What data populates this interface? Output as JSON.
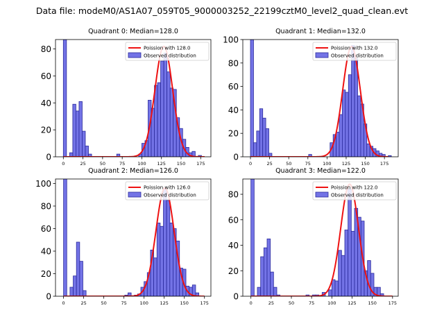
{
  "figure": {
    "suptitle": "Data file: modeM0/AS1A07_059T05_9000003252_22199cztM0_level2_quad_clean.evt"
  },
  "colors": {
    "hist_fill": "#7373e6",
    "hist_edge": "#2a2a9c",
    "curve": "#ee1111",
    "axis": "#000000"
  },
  "chart_data": [
    {
      "type": "bar",
      "title": "Quadrant 0: Median=128.0",
      "xlim": [
        -10,
        188
      ],
      "ylim": [
        0,
        87
      ],
      "xticks": [
        0,
        25,
        50,
        75,
        100,
        125,
        150,
        175
      ],
      "yticks": [
        0,
        20,
        40,
        60,
        80
      ],
      "bin_width": 4,
      "legend": {
        "position": "top-right",
        "curve_label": "Poission with 128.0",
        "hist_label": "Observed distribution"
      },
      "poisson_mean": 128,
      "poisson_peak": 82,
      "curve_range": [
        0,
        180
      ],
      "bins": [
        {
          "x": 0,
          "v": 87
        },
        {
          "x": 8,
          "v": 3
        },
        {
          "x": 12,
          "v": 39
        },
        {
          "x": 16,
          "v": 34
        },
        {
          "x": 20,
          "v": 41
        },
        {
          "x": 24,
          "v": 19
        },
        {
          "x": 28,
          "v": 8
        },
        {
          "x": 32,
          "v": 2
        },
        {
          "x": 68,
          "v": 2
        },
        {
          "x": 96,
          "v": 2
        },
        {
          "x": 100,
          "v": 10
        },
        {
          "x": 104,
          "v": 12
        },
        {
          "x": 108,
          "v": 42
        },
        {
          "x": 112,
          "v": 36
        },
        {
          "x": 116,
          "v": 53
        },
        {
          "x": 120,
          "v": 55
        },
        {
          "x": 124,
          "v": 71
        },
        {
          "x": 128,
          "v": 77
        },
        {
          "x": 132,
          "v": 63
        },
        {
          "x": 136,
          "v": 51
        },
        {
          "x": 140,
          "v": 50
        },
        {
          "x": 144,
          "v": 29
        },
        {
          "x": 148,
          "v": 21
        },
        {
          "x": 152,
          "v": 13
        },
        {
          "x": 156,
          "v": 7
        },
        {
          "x": 160,
          "v": 3
        },
        {
          "x": 164,
          "v": 4
        },
        {
          "x": 172,
          "v": 1
        }
      ]
    },
    {
      "type": "bar",
      "title": "Quadrant 1: Median=132.0",
      "xlim": [
        -10,
        193
      ],
      "ylim": [
        0,
        100
      ],
      "xticks": [
        0,
        25,
        50,
        75,
        100,
        125,
        150,
        175
      ],
      "yticks": [
        0,
        20,
        40,
        60,
        80,
        100
      ],
      "bin_width": 4,
      "legend": {
        "position": "top-right",
        "curve_label": "Poission with 132.0",
        "hist_label": "Observed distribution"
      },
      "poisson_mean": 132,
      "poisson_peak": 94,
      "curve_range": [
        0,
        180
      ],
      "bins": [
        {
          "x": 0,
          "v": 100
        },
        {
          "x": 4,
          "v": 12
        },
        {
          "x": 8,
          "v": 22
        },
        {
          "x": 12,
          "v": 41
        },
        {
          "x": 16,
          "v": 33
        },
        {
          "x": 20,
          "v": 24
        },
        {
          "x": 24,
          "v": 3
        },
        {
          "x": 76,
          "v": 2
        },
        {
          "x": 104,
          "v": 12
        },
        {
          "x": 108,
          "v": 19
        },
        {
          "x": 112,
          "v": 21
        },
        {
          "x": 116,
          "v": 36
        },
        {
          "x": 120,
          "v": 57
        },
        {
          "x": 124,
          "v": 55
        },
        {
          "x": 128,
          "v": 70
        },
        {
          "x": 132,
          "v": 95
        },
        {
          "x": 136,
          "v": 84
        },
        {
          "x": 140,
          "v": 52
        },
        {
          "x": 144,
          "v": 45
        },
        {
          "x": 148,
          "v": 28
        },
        {
          "x": 152,
          "v": 11
        },
        {
          "x": 156,
          "v": 9
        },
        {
          "x": 160,
          "v": 7
        },
        {
          "x": 164,
          "v": 5
        },
        {
          "x": 168,
          "v": 3
        },
        {
          "x": 172,
          "v": 2
        },
        {
          "x": 180,
          "v": 1
        }
      ]
    },
    {
      "type": "bar",
      "title": "Quadrant 2: Median=126.0",
      "xlim": [
        -10,
        183
      ],
      "ylim": [
        0,
        104
      ],
      "xticks": [
        0,
        25,
        50,
        75,
        100,
        125,
        150,
        175
      ],
      "yticks": [
        0,
        20,
        40,
        60,
        80,
        100
      ],
      "bin_width": 4,
      "legend": {
        "position": "top-right",
        "curve_label": "Poission with 126.0",
        "hist_label": "Observed distribution"
      },
      "poisson_mean": 126,
      "poisson_peak": 96,
      "curve_range": [
        0,
        175
      ],
      "bins": [
        {
          "x": 0,
          "v": 104
        },
        {
          "x": 8,
          "v": 8
        },
        {
          "x": 12,
          "v": 18
        },
        {
          "x": 16,
          "v": 48
        },
        {
          "x": 20,
          "v": 31
        },
        {
          "x": 24,
          "v": 5
        },
        {
          "x": 76,
          "v": 1
        },
        {
          "x": 80,
          "v": 3
        },
        {
          "x": 88,
          "v": 1
        },
        {
          "x": 92,
          "v": 2
        },
        {
          "x": 96,
          "v": 8
        },
        {
          "x": 100,
          "v": 13
        },
        {
          "x": 104,
          "v": 21
        },
        {
          "x": 108,
          "v": 41
        },
        {
          "x": 112,
          "v": 34
        },
        {
          "x": 116,
          "v": 65
        },
        {
          "x": 120,
          "v": 62
        },
        {
          "x": 124,
          "v": 96
        },
        {
          "x": 128,
          "v": 85
        },
        {
          "x": 132,
          "v": 65
        },
        {
          "x": 136,
          "v": 60
        },
        {
          "x": 140,
          "v": 49
        },
        {
          "x": 144,
          "v": 25
        },
        {
          "x": 148,
          "v": 24
        },
        {
          "x": 152,
          "v": 9
        },
        {
          "x": 156,
          "v": 8
        },
        {
          "x": 160,
          "v": 10
        },
        {
          "x": 164,
          "v": 3
        }
      ]
    },
    {
      "type": "bar",
      "title": "Quadrant 3: Median=122.0",
      "xlim": [
        -10,
        182
      ],
      "ylim": [
        0,
        92
      ],
      "xticks": [
        0,
        25,
        50,
        75,
        100,
        125,
        150,
        175
      ],
      "yticks": [
        0,
        20,
        40,
        60,
        80
      ],
      "bin_width": 4,
      "legend": {
        "position": "top-right",
        "curve_label": "Poission with 122.0",
        "hist_label": "Observed distribution"
      },
      "poisson_mean": 122,
      "poisson_peak": 88,
      "curve_range": [
        0,
        175
      ],
      "bins": [
        {
          "x": 0,
          "v": 92
        },
        {
          "x": 8,
          "v": 7
        },
        {
          "x": 12,
          "v": 31
        },
        {
          "x": 16,
          "v": 38
        },
        {
          "x": 20,
          "v": 45
        },
        {
          "x": 24,
          "v": 19
        },
        {
          "x": 28,
          "v": 7
        },
        {
          "x": 32,
          "v": 1
        },
        {
          "x": 68,
          "v": 1
        },
        {
          "x": 76,
          "v": 1
        },
        {
          "x": 80,
          "v": 1
        },
        {
          "x": 88,
          "v": 3
        },
        {
          "x": 96,
          "v": 5
        },
        {
          "x": 100,
          "v": 13
        },
        {
          "x": 104,
          "v": 12
        },
        {
          "x": 108,
          "v": 36
        },
        {
          "x": 112,
          "v": 32
        },
        {
          "x": 116,
          "v": 52
        },
        {
          "x": 120,
          "v": 84
        },
        {
          "x": 124,
          "v": 51
        },
        {
          "x": 128,
          "v": 69
        },
        {
          "x": 132,
          "v": 62
        },
        {
          "x": 136,
          "v": 59
        },
        {
          "x": 140,
          "v": 20
        },
        {
          "x": 144,
          "v": 28
        },
        {
          "x": 148,
          "v": 18
        },
        {
          "x": 152,
          "v": 7
        },
        {
          "x": 156,
          "v": 7
        },
        {
          "x": 160,
          "v": 2
        }
      ]
    }
  ]
}
